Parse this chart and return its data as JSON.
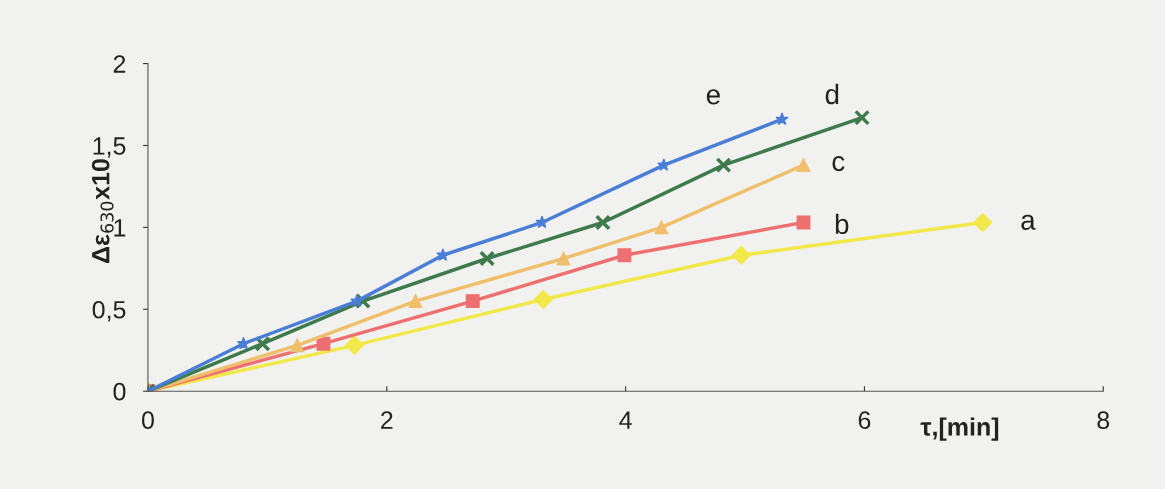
{
  "chart_data": {
    "type": "line",
    "xlabel": "τ,[min]",
    "ylabel": "Δε$_{630}$x10",
    "xlim": [
      0,
      8
    ],
    "xticks": [
      0,
      2,
      4,
      6,
      8
    ],
    "ylim": [
      0,
      2
    ],
    "yticks": [
      0,
      {
        "value": 0.5,
        "label": "0,5"
      },
      1,
      {
        "value": 1.5,
        "label": "1,5"
      },
      2
    ],
    "grid": false,
    "legend": false,
    "series": [
      {
        "name": "a",
        "color": "#f2e84a",
        "marker": "diamond",
        "x": [
          0,
          1.73,
          3.31,
          4.97,
          6.99
        ],
        "values": [
          0,
          0.28,
          0.56,
          0.83,
          1.03
        ]
      },
      {
        "name": "b",
        "color": "#ee6f6f",
        "marker": "square",
        "x": [
          0,
          1.47,
          2.72,
          3.99,
          5.49
        ],
        "values": [
          0,
          0.29,
          0.55,
          0.83,
          1.03
        ]
      },
      {
        "name": "c",
        "color": "#f0bf6c",
        "marker": "triangle",
        "x": [
          0,
          1.25,
          2.24,
          3.48,
          4.3,
          5.49
        ],
        "values": [
          0,
          0.28,
          0.55,
          0.81,
          1.0,
          1.38
        ]
      },
      {
        "name": "d",
        "color": "#3e7a4c",
        "marker": "cross",
        "x": [
          0,
          0.96,
          1.8,
          2.84,
          3.81,
          4.82,
          5.98
        ],
        "values": [
          0,
          0.29,
          0.55,
          0.81,
          1.03,
          1.38,
          1.67
        ]
      },
      {
        "name": "e",
        "color": "#4a7ed6",
        "marker": "star",
        "x": [
          0,
          0.8,
          1.75,
          2.47,
          3.3,
          4.32,
          5.31
        ],
        "values": [
          0,
          0.29,
          0.55,
          0.83,
          1.03,
          1.38,
          1.66
        ]
      }
    ]
  }
}
